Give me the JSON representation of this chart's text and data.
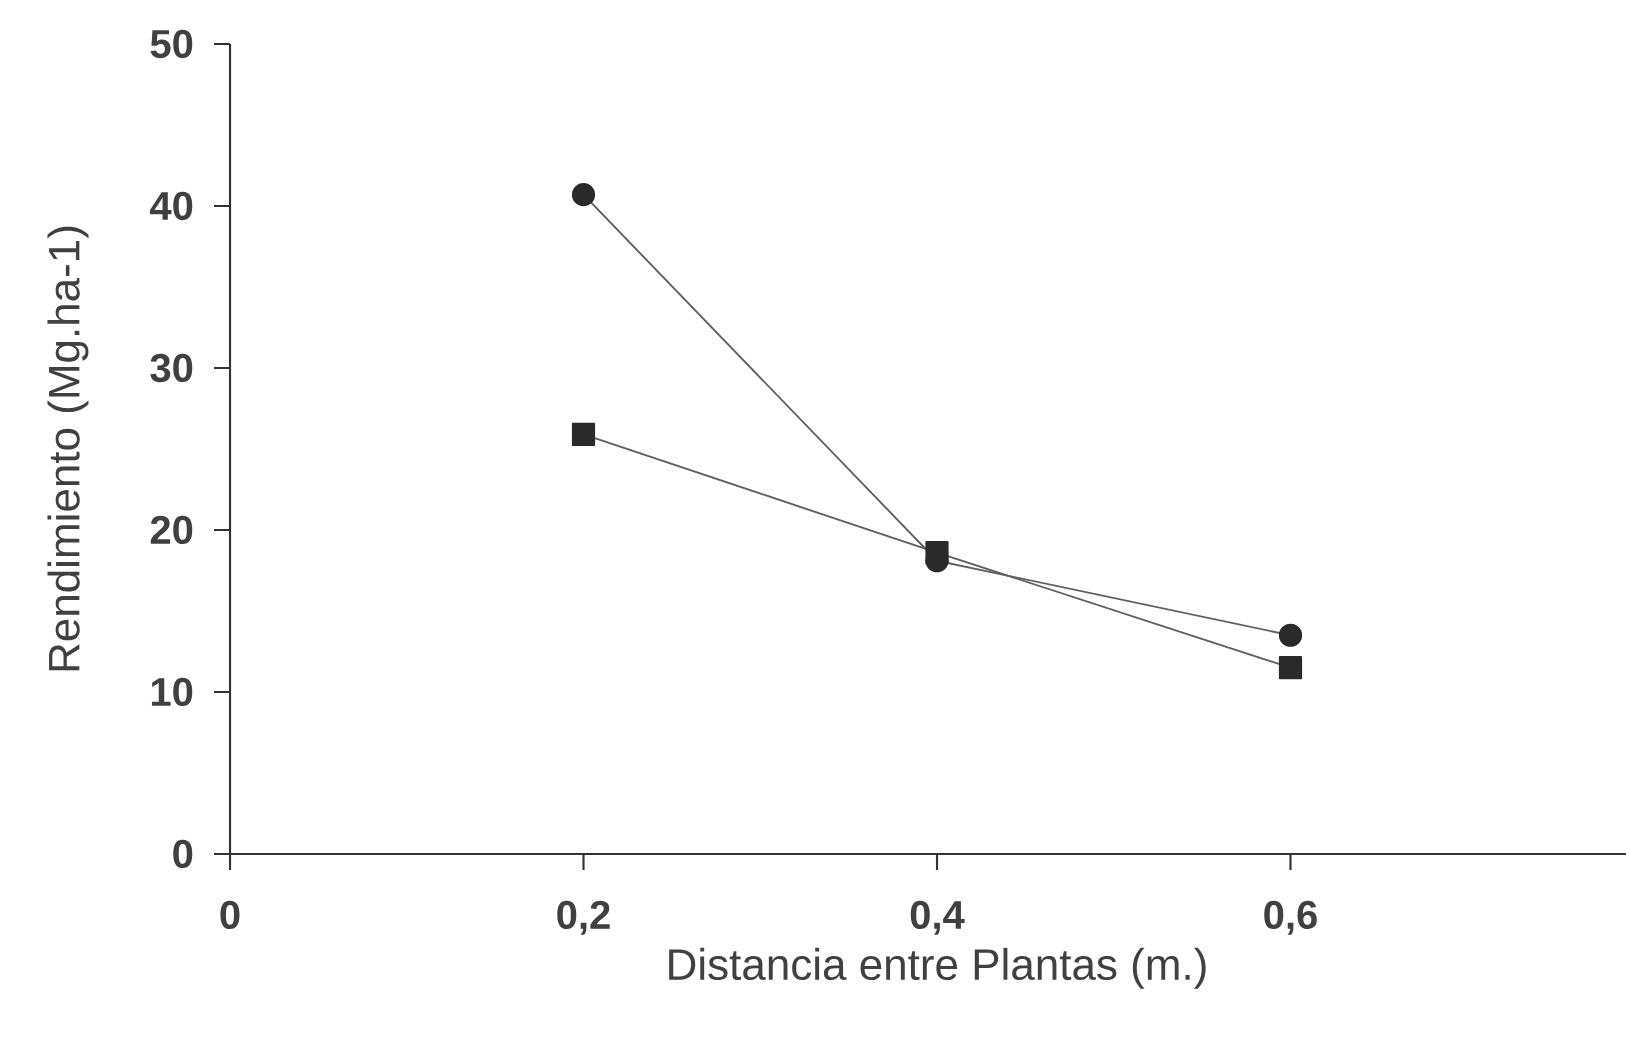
{
  "chart_data": {
    "type": "line",
    "xlabel": "Distancia entre Plantas (m.)",
    "ylabel": "Rendimiento (Mg.ha-1)",
    "xlim": [
      0,
      0.8
    ],
    "xticks": [
      0,
      {
        "value": 0.2,
        "label": "0,2"
      },
      {
        "value": 0.4,
        "label": "0,4"
      },
      {
        "value": 0.6,
        "label": "0,6"
      }
    ],
    "ylim": [
      0,
      50
    ],
    "yticks": [
      0,
      10,
      20,
      30,
      40,
      50
    ],
    "grid": false,
    "line_style": "solid",
    "x": [
      0.2,
      0.4,
      0.6
    ],
    "series": [
      {
        "color": "#2a2a2a",
        "marker": "circle",
        "values": [
          40.7,
          18.1,
          13.5
        ]
      },
      {
        "color": "#2a2a2a",
        "marker": "square",
        "values": [
          25.9,
          18.6,
          11.5
        ]
      }
    ]
  }
}
